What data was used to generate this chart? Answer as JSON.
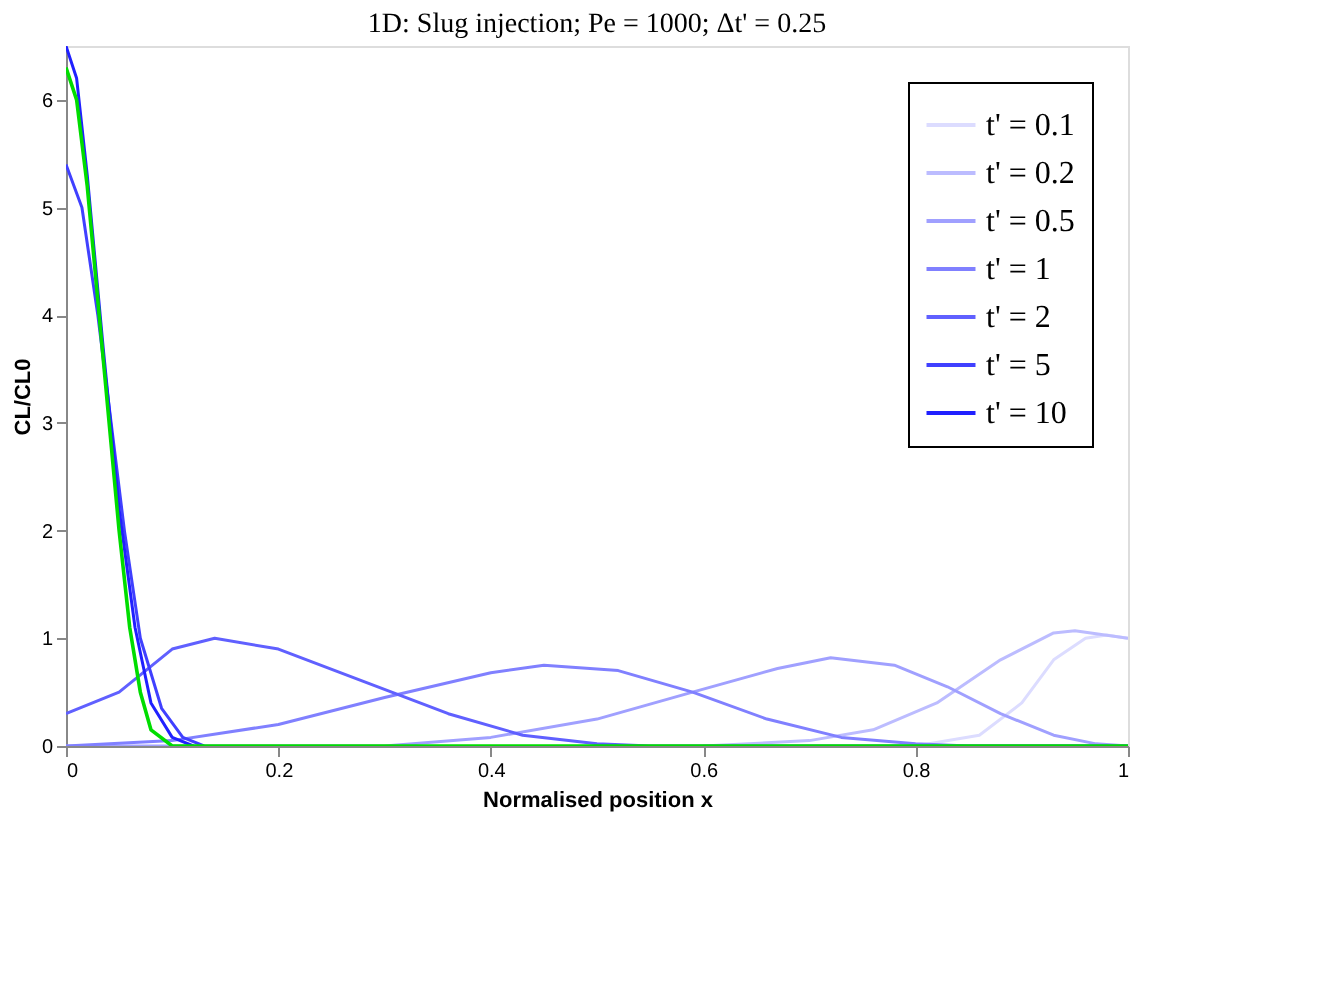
{
  "chart_data": {
    "type": "line",
    "title": "1D: Slug injection; Pe = 1000; Δt' = 0.25",
    "xlabel": "Normalised position x",
    "ylabel": "CL/CL0",
    "xlim": [
      0,
      1
    ],
    "ylim": [
      0,
      6.5
    ],
    "xticks": [
      0,
      0.2,
      0.4,
      0.6,
      0.8,
      1
    ],
    "yticks": [
      0,
      1,
      2,
      3,
      4,
      5,
      6
    ],
    "grid": false,
    "legend": "top right",
    "marker": "none",
    "line_style": "solid",
    "series": [
      {
        "name": "t' = 0.1",
        "color": "#dcdcff",
        "x": [
          0.8,
          0.86,
          0.9,
          0.93,
          0.96,
          0.98,
          1
        ],
        "values": [
          0,
          0.1,
          0.4,
          0.8,
          1.0,
          1.03,
          1.0
        ]
      },
      {
        "name": "t' = 0.2",
        "color": "#bcbcff",
        "x": [
          0.6,
          0.7,
          0.76,
          0.82,
          0.88,
          0.93,
          0.95,
          1
        ],
        "values": [
          0,
          0.05,
          0.15,
          0.4,
          0.8,
          1.05,
          1.07,
          1.0
        ]
      },
      {
        "name": "t' = 0.5",
        "color": "#a0a0ff",
        "x": [
          0,
          0.3,
          0.4,
          0.5,
          0.59,
          0.67,
          0.72,
          0.78,
          0.83,
          0.88,
          0.93,
          0.97,
          1
        ],
        "values": [
          0,
          0,
          0.08,
          0.25,
          0.5,
          0.72,
          0.82,
          0.75,
          0.55,
          0.3,
          0.1,
          0.02,
          0
        ]
      },
      {
        "name": "t' = 1",
        "color": "#8080ff",
        "x": [
          0,
          0.1,
          0.2,
          0.3,
          0.4,
          0.45,
          0.52,
          0.59,
          0.66,
          0.73,
          0.8,
          0.85,
          1
        ],
        "values": [
          0,
          0.05,
          0.2,
          0.45,
          0.68,
          0.75,
          0.7,
          0.5,
          0.25,
          0.08,
          0.02,
          0,
          0
        ]
      },
      {
        "name": "t' = 2",
        "color": "#6060ff",
        "x": [
          0,
          0.05,
          0.1,
          0.14,
          0.2,
          0.28,
          0.36,
          0.43,
          0.5,
          0.55,
          1
        ],
        "values": [
          0.3,
          0.5,
          0.9,
          1.0,
          0.9,
          0.6,
          0.3,
          0.1,
          0.02,
          0,
          0
        ]
      },
      {
        "name": "t' = 5",
        "color": "#4040ff",
        "x": [
          0,
          0.015,
          0.03,
          0.045,
          0.055,
          0.07,
          0.09,
          0.11,
          0.13
        ],
        "values": [
          5.4,
          5.0,
          4.0,
          2.8,
          2.0,
          1.0,
          0.35,
          0.08,
          0
        ]
      },
      {
        "name": "t' = 10",
        "color": "#2020ff",
        "x": [
          0,
          0.01,
          0.02,
          0.035,
          0.05,
          0.065,
          0.08,
          0.1,
          0.12
        ],
        "values": [
          6.5,
          6.2,
          5.3,
          3.7,
          2.2,
          1.1,
          0.4,
          0.08,
          0
        ]
      },
      {
        "color": "#00dd00",
        "x": [
          0,
          0.01,
          0.02,
          0.035,
          0.05,
          0.06,
          0.07,
          0.08,
          0.1,
          1
        ],
        "values": [
          6.3,
          6.0,
          5.2,
          3.6,
          2.0,
          1.1,
          0.5,
          0.15,
          0,
          0
        ]
      }
    ]
  }
}
